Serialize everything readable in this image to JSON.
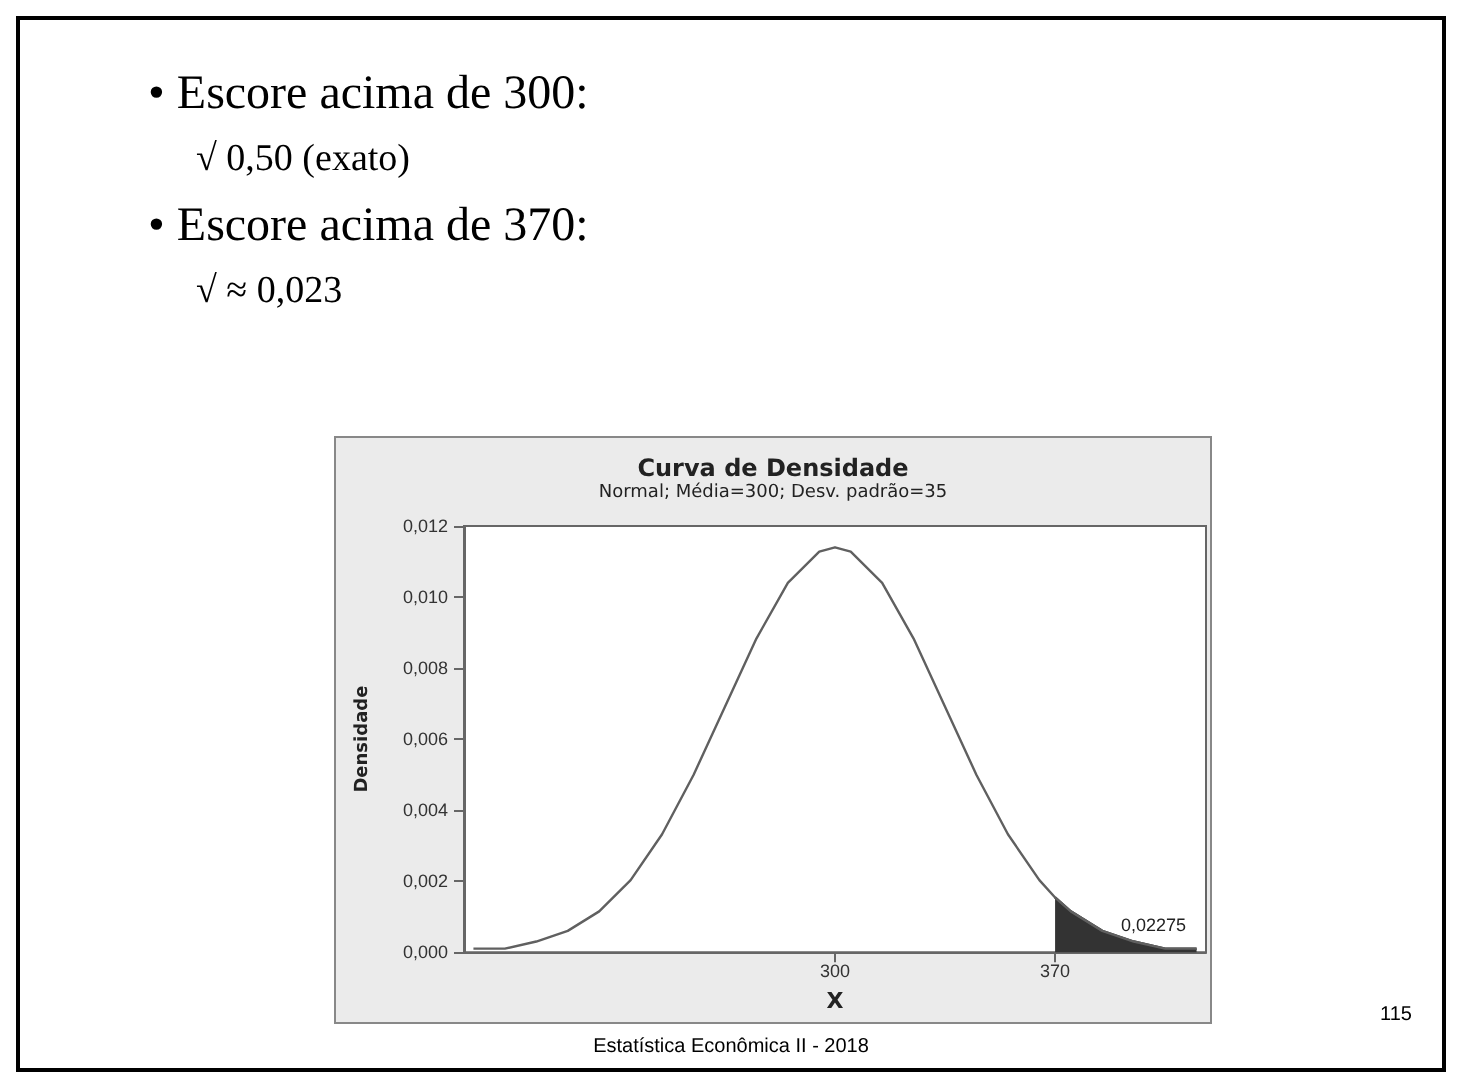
{
  "chart_data": {
    "type": "line",
    "title": "Curva de Densidade",
    "subtitle": "Normal; Média=300; Desv. padrão=35",
    "xlabel": "X",
    "ylabel": "Densidade",
    "xlim": [
      182,
      418
    ],
    "xticks": [
      300,
      370
    ],
    "ylim": [
      0,
      0.012
    ],
    "yticks": [
      {
        "value": 0,
        "label": "0,000"
      },
      {
        "value": 0.002,
        "label": "0,002"
      },
      {
        "value": 0.004,
        "label": "0,004"
      },
      {
        "value": 0.006,
        "label": "0,006"
      },
      {
        "value": 0.008,
        "label": "0,008"
      },
      {
        "value": 0.01,
        "label": "0,010"
      },
      {
        "value": 0.012,
        "label": "0,012"
      }
    ],
    "grid": false,
    "marker": "none",
    "line_style": "solid",
    "series": [
      {
        "color": "#606060",
        "x": [
          185,
          195,
          205,
          215,
          225,
          235,
          245,
          255,
          265,
          275,
          285,
          295,
          300,
          305,
          315,
          325,
          335,
          345,
          355,
          365,
          370,
          375,
          385,
          395,
          405,
          415
        ],
        "values": [
          0.0001,
          0.0001,
          0.0003,
          0.0006,
          0.00115,
          0.00203,
          0.00332,
          0.00499,
          0.00691,
          0.00883,
          0.0104,
          0.01128,
          0.0114,
          0.01128,
          0.0104,
          0.00883,
          0.00691,
          0.00499,
          0.00332,
          0.00203,
          0.00154,
          0.00115,
          0.0006,
          0.0003,
          0.0001,
          0.0001
        ]
      },
      {
        "type": "area",
        "color": "#333333",
        "x": [
          370,
          375,
          385,
          395,
          405,
          415
        ],
        "values": [
          0.00154,
          0.00115,
          0.0006,
          0.0003,
          0.0001,
          0.0001
        ]
      }
    ],
    "annotations": [
      "• Escore acima de 300:",
      "√ 0,50 (exato)",
      "• Escore acima de 370:",
      "√ ≈ 0,023",
      "Estatística Econômica II - 2018",
      "115",
      "0,02275"
    ]
  }
}
